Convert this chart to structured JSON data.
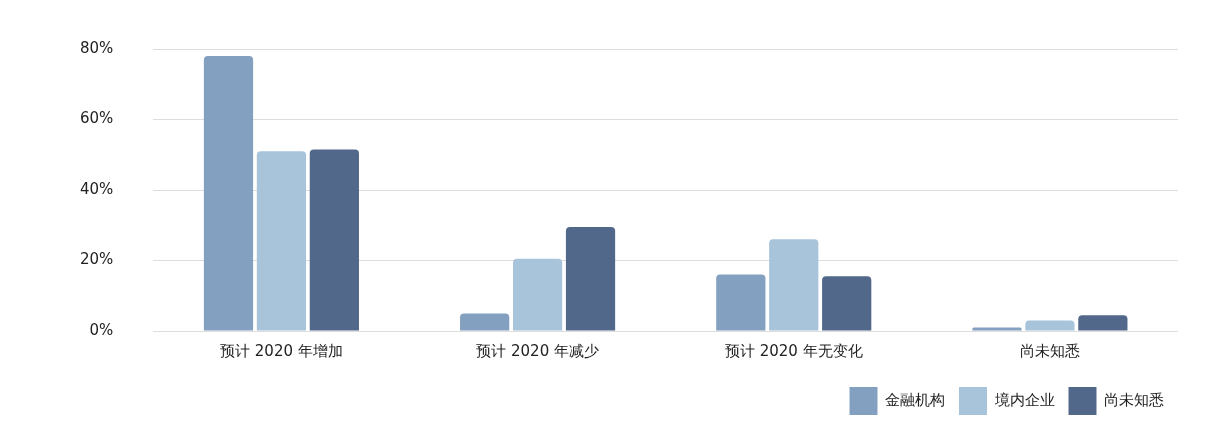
{
  "chart_data": {
    "type": "bar",
    "categories": [
      "预计 2020 年增加",
      "预计 2020 年减少",
      "预计 2020 年无变化",
      "尚未知悉"
    ],
    "series": [
      {
        "name": "金融机构",
        "color": "#84a0c0",
        "values": [
          78,
          5,
          16,
          1
        ]
      },
      {
        "name": "境内企业",
        "color": "#a8c4db",
        "values": [
          51,
          20.5,
          26,
          3
        ]
      },
      {
        "name": "尚未知悉",
        "color": "#52688a",
        "values": [
          51.5,
          29.5,
          15.5,
          4.5
        ]
      }
    ],
    "ylim": [
      0,
      80
    ],
    "yticks": [
      {
        "value": 0,
        "label": "0%"
      },
      {
        "value": 20,
        "label": "20%"
      },
      {
        "value": 40,
        "label": "40%"
      },
      {
        "value": 60,
        "label": "60%"
      },
      {
        "value": 80,
        "label": "80%"
      }
    ],
    "grid": "y",
    "legend": "bottom right"
  }
}
